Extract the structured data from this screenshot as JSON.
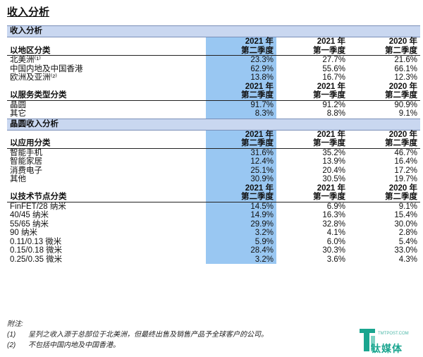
{
  "page": {
    "title": "收入分析"
  },
  "sections": [
    {
      "type": "band",
      "label": "收入分析"
    },
    {
      "type": "head",
      "category": "以地区分类",
      "cols": [
        [
          "2021 年",
          "第二季度"
        ],
        [
          "2021 年",
          "第一季度"
        ],
        [
          "2020 年",
          "第二季度"
        ]
      ]
    },
    {
      "type": "row",
      "label": "北美洲⁽¹⁾",
      "values": [
        "23.3%",
        "27.7%",
        "21.6%"
      ]
    },
    {
      "type": "row",
      "label": "中国内地及中国香港",
      "values": [
        "62.9%",
        "55.6%",
        "66.1%"
      ]
    },
    {
      "type": "row",
      "label": "欧洲及亚洲⁽²⁾",
      "values": [
        "13.8%",
        "16.7%",
        "12.3%"
      ]
    },
    {
      "type": "head",
      "category": "以服务类型分类",
      "cols": [
        [
          "2021 年",
          "第二季度"
        ],
        [
          "2021 年",
          "第一季度"
        ],
        [
          "2020 年",
          "第二季度"
        ]
      ]
    },
    {
      "type": "row",
      "label": "晶圆",
      "values": [
        "91.7%",
        "91.2%",
        "90.9%"
      ]
    },
    {
      "type": "row",
      "label": "其它",
      "values": [
        "8.3%",
        "8.8%",
        "9.1%"
      ]
    },
    {
      "type": "band",
      "label": "晶圆收入分析"
    },
    {
      "type": "head",
      "category": "以应用分类",
      "cols": [
        [
          "2021 年",
          "第二季度"
        ],
        [
          "2021 年",
          "第一季度"
        ],
        [
          "2020 年",
          "第二季度"
        ]
      ]
    },
    {
      "type": "row",
      "label": "智能手机",
      "values": [
        "31.6%",
        "35.2%",
        "46.7%"
      ]
    },
    {
      "type": "row",
      "label": "智能家居",
      "values": [
        "12.4%",
        "13.9%",
        "16.4%"
      ]
    },
    {
      "type": "row",
      "label": "消费电子",
      "values": [
        "25.1%",
        "20.4%",
        "17.2%"
      ]
    },
    {
      "type": "row",
      "label": "其他",
      "values": [
        "30.9%",
        "30.5%",
        "19.7%"
      ]
    },
    {
      "type": "head",
      "category": "以技术节点分类",
      "cols": [
        [
          "2021 年",
          "第二季度"
        ],
        [
          "2021 年",
          "第一季度"
        ],
        [
          "2020 年",
          "第二季度"
        ]
      ]
    },
    {
      "type": "row",
      "label": "FinFET/28 纳米",
      "values": [
        "14.5%",
        "6.9%",
        "9.1%"
      ]
    },
    {
      "type": "row",
      "label": "40/45 纳米",
      "values": [
        "14.9%",
        "16.3%",
        "15.4%"
      ]
    },
    {
      "type": "row",
      "label": "55/65 纳米",
      "values": [
        "29.9%",
        "32.8%",
        "30.0%"
      ]
    },
    {
      "type": "row",
      "label": "90 纳米",
      "values": [
        "3.2%",
        "4.1%",
        "2.8%"
      ]
    },
    {
      "type": "row",
      "label": "0.11/0.13 微米",
      "values": [
        "5.9%",
        "6.0%",
        "5.4%"
      ]
    },
    {
      "type": "row",
      "label": "0.15/0.18 微米",
      "values": [
        "28.4%",
        "30.3%",
        "33.0%"
      ]
    },
    {
      "type": "row",
      "label": "0.25/0.35 微米",
      "values": [
        "3.2%",
        "3.6%",
        "4.3%"
      ]
    }
  ],
  "footnotes": {
    "heading": "附注:",
    "items": [
      {
        "mark": "(1)",
        "text": "呈列之收入源于总部位于北美洲，但最终出售及销售产品予全球客户的公司。"
      },
      {
        "mark": "(2)",
        "text": "不包括中国内地及中国香港。"
      }
    ]
  },
  "watermark": {
    "brand": "钛媒体",
    "sub": "TMTPOST.COM"
  },
  "colors": {
    "band": "#c9d7f0",
    "highlight_column": "#99c7f2",
    "brand": "#1aa58f"
  }
}
